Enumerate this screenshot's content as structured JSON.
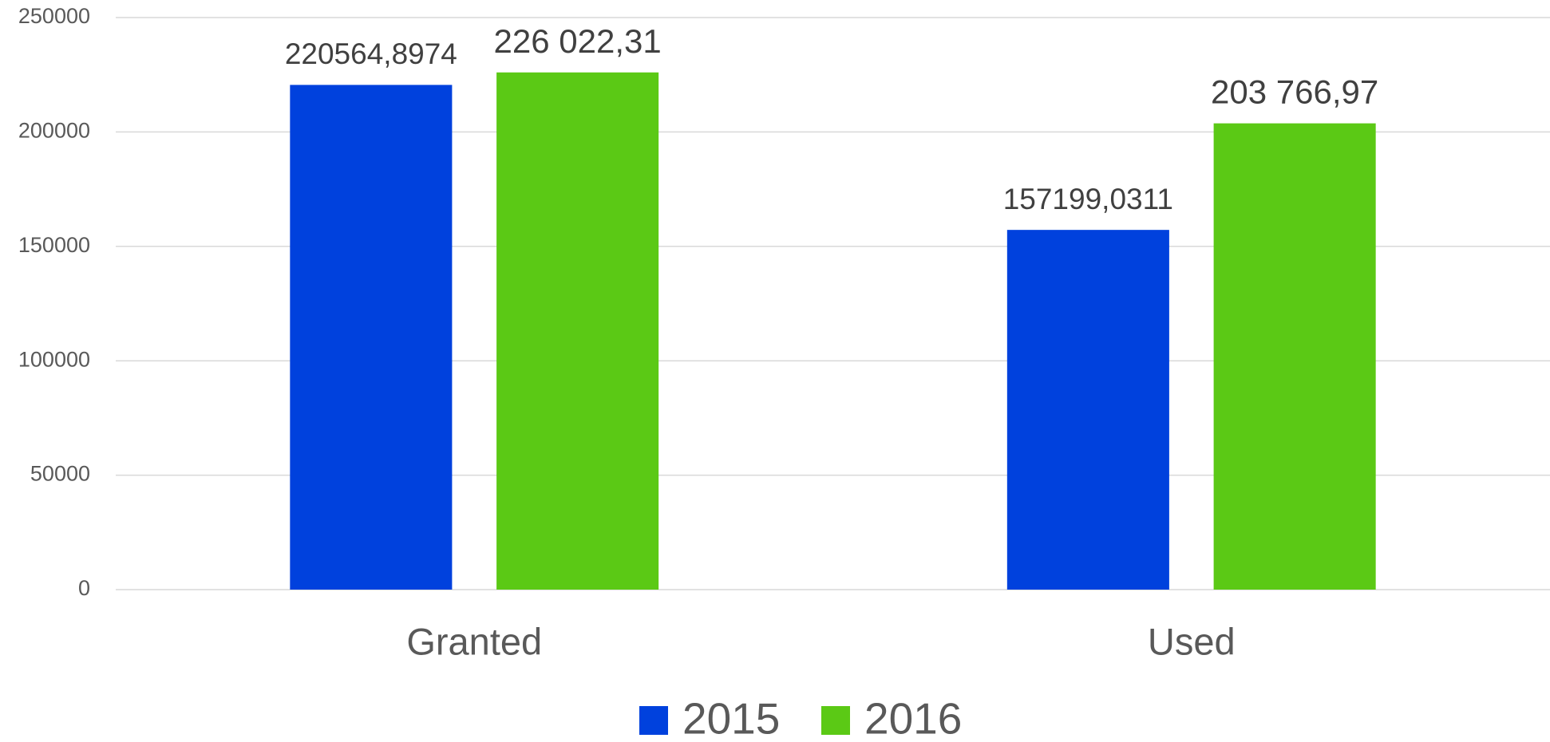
{
  "chart_data": {
    "type": "bar",
    "categories": [
      "Granted",
      "Used"
    ],
    "series": [
      {
        "name": "2015",
        "color": "#0041dd",
        "values": [
          220564.8974,
          157199.0311
        ],
        "value_labels": [
          "220564,8974",
          "157199,0311"
        ]
      },
      {
        "name": "2016",
        "color": "#5bc915",
        "values": [
          226022.31,
          203766.97
        ],
        "value_labels": [
          "226 022,31",
          "203 766,97"
        ]
      }
    ],
    "ylim": [
      0,
      250000
    ],
    "yticks": [
      0,
      50000,
      100000,
      150000,
      200000,
      250000
    ],
    "grid": true,
    "legend": "bottom"
  }
}
